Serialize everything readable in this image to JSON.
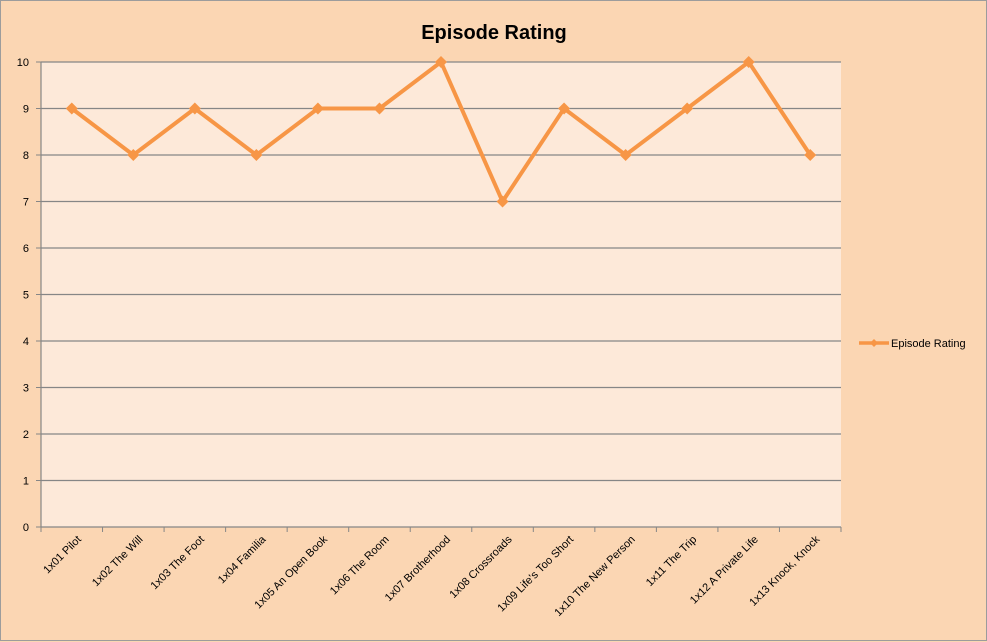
{
  "chart_data": {
    "type": "line",
    "title": "Episode Rating",
    "xlabel": "",
    "ylabel": "",
    "categories": [
      "1x01 Pilot",
      "1x02 The Will",
      "1x03 The Foot",
      "1x04 Familia",
      "1x05 An Open Book",
      "1x06 The Room",
      "1x07 Brotherhood",
      "1x08 Crossroads",
      "1x09 Life's Too Short",
      "1x10 The New Person",
      "1x11 The Trip",
      "1x12 A Private Life",
      "1x13 Knock, Knock"
    ],
    "series": [
      {
        "name": "Episode Rating",
        "values": [
          9,
          8,
          9,
          8,
          9,
          9,
          10,
          7,
          9,
          8,
          9,
          10,
          8
        ],
        "color": "#f79646"
      }
    ],
    "ylim": [
      0,
      10
    ],
    "yticks": [
      0,
      1,
      2,
      3,
      4,
      5,
      6,
      7,
      8,
      9,
      10
    ],
    "grid": "horizontal",
    "legend_position": "right",
    "colors": {
      "chart_background": "#fbd6b3",
      "plot_background": "#fde9d9",
      "gridline": "#868686",
      "line": "#f79646"
    }
  }
}
